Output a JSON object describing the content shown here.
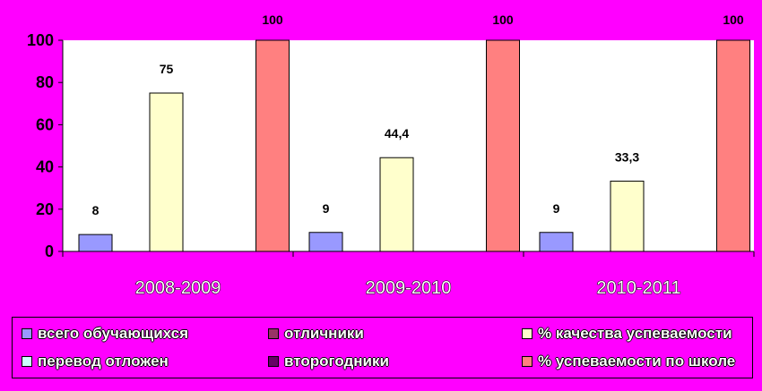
{
  "chart_data": {
    "type": "bar",
    "categories": [
      "2008-2009",
      "2009-2010",
      "2010-2011"
    ],
    "series": [
      {
        "name": "всего обучающихся",
        "color": "#9999ff",
        "values": [
          8,
          9,
          9
        ]
      },
      {
        "name": "отличники",
        "color": "#993366",
        "values": [
          0,
          0,
          0
        ]
      },
      {
        "name": "% качества успеваемости",
        "color": "#ffffcc",
        "values": [
          75,
          44.4,
          33.3
        ]
      },
      {
        "name": "перевод отложен",
        "color": "#ccffff",
        "values": [
          0,
          0,
          0
        ]
      },
      {
        "name": "второгодники",
        "color": "#660066",
        "values": [
          0,
          0,
          0
        ]
      },
      {
        "name": "% успеваемости по школе",
        "color": "#ff8080",
        "values": [
          100,
          100,
          100
        ]
      }
    ],
    "data_labels": [
      [
        "8",
        "75",
        "100"
      ],
      [
        "9",
        "44,4",
        "100"
      ],
      [
        "9",
        "33,3",
        "100"
      ]
    ],
    "yticks": [
      "0",
      "20",
      "40",
      "60",
      "80",
      "100"
    ],
    "ylim": [
      0,
      100
    ],
    "grid": false,
    "legend_position": "bottom",
    "background": "#ff00ff",
    "plot_background": "#ffffff"
  }
}
